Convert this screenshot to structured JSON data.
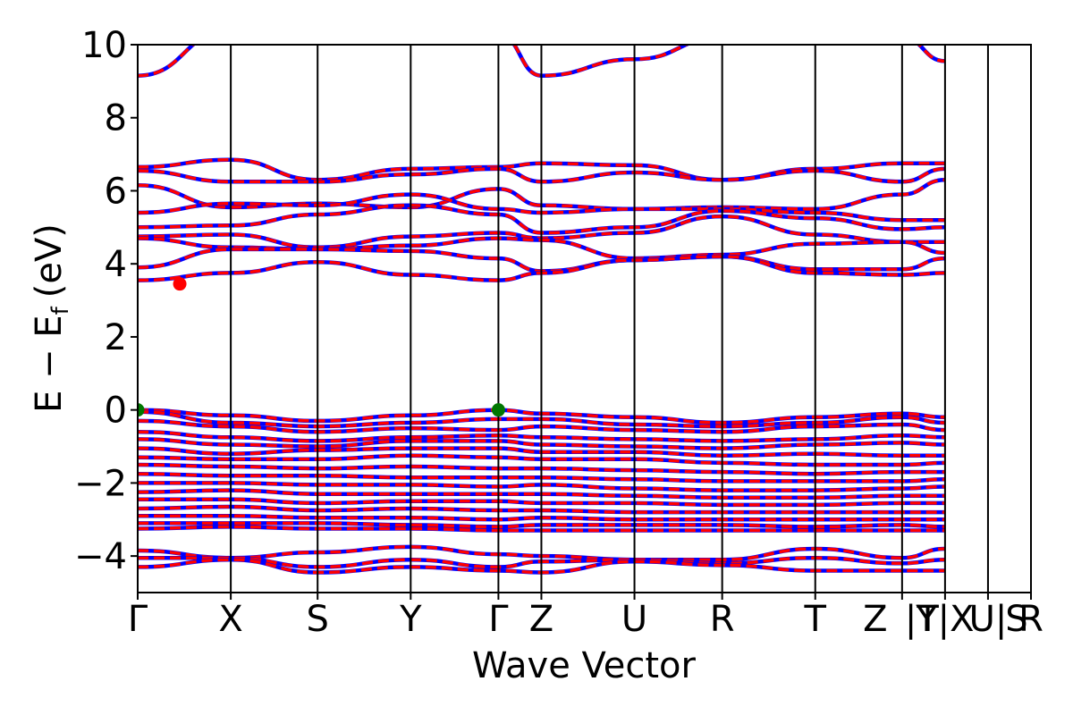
{
  "chart_data": {
    "type": "line",
    "title": "",
    "xlabel": "Wave Vector",
    "ylabel_main": "E − E",
    "ylabel_sub": "f",
    "ylabel_unit": "(eV)",
    "ylim": [
      -5,
      10
    ],
    "yticks": [
      {
        "value": 10,
        "label": "10"
      },
      {
        "value": 8,
        "label": "8"
      },
      {
        "value": 6,
        "label": "6"
      },
      {
        "value": 4,
        "label": "4"
      },
      {
        "value": 2,
        "label": "2"
      },
      {
        "value": 0,
        "label": "0"
      },
      {
        "value": -2,
        "label": "−2"
      },
      {
        "value": -4,
        "label": "−4"
      }
    ],
    "kpoints": [
      {
        "label": "Γ",
        "k": 0
      },
      {
        "label": "X",
        "k": 1.04
      },
      {
        "label": "S",
        "k": 2.01
      },
      {
        "label": "Y",
        "k": 3.05
      },
      {
        "label": "Γ",
        "k": 4.03
      },
      {
        "label": "Z",
        "k": 4.51
      },
      {
        "label": "U",
        "k": 5.55
      },
      {
        "label": "R",
        "k": 6.53
      },
      {
        "label": "T",
        "k": 7.57
      },
      {
        "label": "Z",
        "k": 8.54
      },
      {
        "label": "|T",
        "k": 8.54
      },
      {
        "label": "Y|X",
        "k": 9.02
      },
      {
        "label": "U|",
        "k": 9.5
      },
      {
        "label": "S",
        "k": 9.98
      },
      {
        "label": "R",
        "k": 9.98
      }
    ],
    "k_max": 9.98,
    "grid": false,
    "line_colors": {
      "spin_up": "#ff0000",
      "spin_down": "#0000ff"
    },
    "cbm_marker": {
      "k": 0.47,
      "energy": 3.45,
      "color": "#ff0000"
    },
    "vbm_markers": [
      {
        "k": 0,
        "energy": 0.0,
        "color": "#007700"
      },
      {
        "k": 4.03,
        "energy": 0.0,
        "color": "#007700"
      }
    ],
    "bands": [
      [
        9.15,
        10.4,
        11.0,
        11.0,
        10.3,
        9.15,
        9.6,
        10.2,
        11.0,
        10.2,
        9.55
      ],
      [
        6.65,
        6.85,
        6.3,
        6.6,
        6.65,
        6.75,
        6.7,
        6.3,
        6.6,
        6.75,
        6.75
      ],
      [
        6.55,
        6.25,
        6.25,
        6.45,
        6.6,
        6.25,
        6.5,
        6.3,
        6.55,
        6.25,
        6.6
      ],
      [
        6.15,
        5.55,
        5.65,
        5.55,
        6.05,
        5.6,
        5.5,
        5.55,
        5.5,
        5.9,
        6.3
      ],
      [
        5.4,
        5.65,
        5.6,
        5.9,
        5.5,
        5.4,
        5.5,
        5.5,
        5.4,
        5.2,
        5.2
      ],
      [
        5.0,
        5.05,
        5.35,
        5.6,
        5.35,
        4.85,
        5.0,
        5.45,
        5.25,
        4.95,
        5.0
      ],
      [
        4.75,
        4.8,
        4.45,
        4.75,
        4.85,
        4.7,
        4.85,
        5.3,
        4.8,
        4.6,
        4.6
      ],
      [
        4.7,
        4.45,
        4.4,
        4.5,
        4.7,
        4.65,
        4.15,
        4.25,
        4.55,
        4.6,
        4.3
      ],
      [
        3.9,
        4.4,
        4.4,
        4.35,
        4.15,
        3.8,
        4.1,
        4.2,
        3.85,
        3.85,
        4.15
      ],
      [
        3.55,
        3.75,
        4.05,
        3.7,
        3.55,
        3.75,
        4.1,
        4.2,
        3.75,
        3.7,
        3.75
      ],
      [
        0.0,
        -0.15,
        -0.3,
        -0.15,
        0.0,
        -0.1,
        -0.2,
        -0.35,
        -0.2,
        -0.1,
        -0.2
      ],
      [
        -0.05,
        -0.35,
        -0.45,
        -0.35,
        -0.25,
        -0.25,
        -0.4,
        -0.45,
        -0.35,
        -0.2,
        -0.35
      ],
      [
        -0.3,
        -0.45,
        -0.6,
        -0.5,
        -0.55,
        -0.45,
        -0.55,
        -0.6,
        -0.45,
        -0.4,
        -0.55
      ],
      [
        -0.6,
        -0.75,
        -0.85,
        -0.75,
        -0.7,
        -0.75,
        -0.8,
        -0.85,
        -0.8,
        -0.7,
        -0.75
      ],
      [
        -0.8,
        -0.95,
        -1.0,
        -0.85,
        -0.85,
        -0.95,
        -1.0,
        -1.05,
        -0.95,
        -0.9,
        -0.95
      ],
      [
        -1.05,
        -1.2,
        -1.1,
        -1.05,
        -1.05,
        -1.15,
        -1.15,
        -1.25,
        -1.2,
        -1.25,
        -1.25
      ],
      [
        -1.3,
        -1.35,
        -1.35,
        -1.25,
        -1.3,
        -1.35,
        -1.35,
        -1.45,
        -1.5,
        -1.5,
        -1.45
      ],
      [
        -1.5,
        -1.55,
        -1.6,
        -1.55,
        -1.6,
        -1.6,
        -1.65,
        -1.7,
        -1.75,
        -1.7,
        -1.7
      ],
      [
        -1.75,
        -1.8,
        -1.8,
        -1.85,
        -1.85,
        -1.85,
        -1.9,
        -1.95,
        -1.95,
        -1.95,
        -1.9
      ],
      [
        -2.0,
        -2.0,
        -2.05,
        -2.05,
        -2.1,
        -2.05,
        -2.15,
        -2.2,
        -2.2,
        -2.15,
        -2.1
      ],
      [
        -2.25,
        -2.2,
        -2.3,
        -2.3,
        -2.3,
        -2.3,
        -2.35,
        -2.4,
        -2.4,
        -2.35,
        -2.35
      ],
      [
        -2.45,
        -2.45,
        -2.55,
        -2.5,
        -2.5,
        -2.55,
        -2.55,
        -2.6,
        -2.6,
        -2.55,
        -2.55
      ],
      [
        -2.7,
        -2.65,
        -2.75,
        -2.7,
        -2.75,
        -2.75,
        -2.8,
        -2.8,
        -2.8,
        -2.8,
        -2.8
      ],
      [
        -2.9,
        -2.9,
        -2.95,
        -2.95,
        -3.0,
        -2.95,
        -3.0,
        -3.0,
        -3.0,
        -3.0,
        -3.0
      ],
      [
        -3.1,
        -3.1,
        -3.1,
        -3.15,
        -3.2,
        -3.15,
        -3.15,
        -3.15,
        -3.2,
        -3.15,
        -3.2
      ],
      [
        -3.25,
        -3.2,
        -3.25,
        -3.25,
        -3.3,
        -3.3,
        -3.3,
        -3.3,
        -3.3,
        -3.3,
        -3.3
      ],
      [
        -3.85,
        -4.05,
        -3.9,
        -3.75,
        -3.95,
        -4.0,
        -4.1,
        -4.1,
        -3.8,
        -4.05,
        -3.8
      ],
      [
        -4.05,
        -4.05,
        -4.3,
        -4.1,
        -4.3,
        -4.15,
        -4.1,
        -4.2,
        -4.05,
        -4.2,
        -4.1
      ],
      [
        -4.3,
        -4.1,
        -4.45,
        -4.3,
        -4.4,
        -4.45,
        -4.15,
        -4.25,
        -4.4,
        -4.4,
        -4.4
      ]
    ]
  }
}
